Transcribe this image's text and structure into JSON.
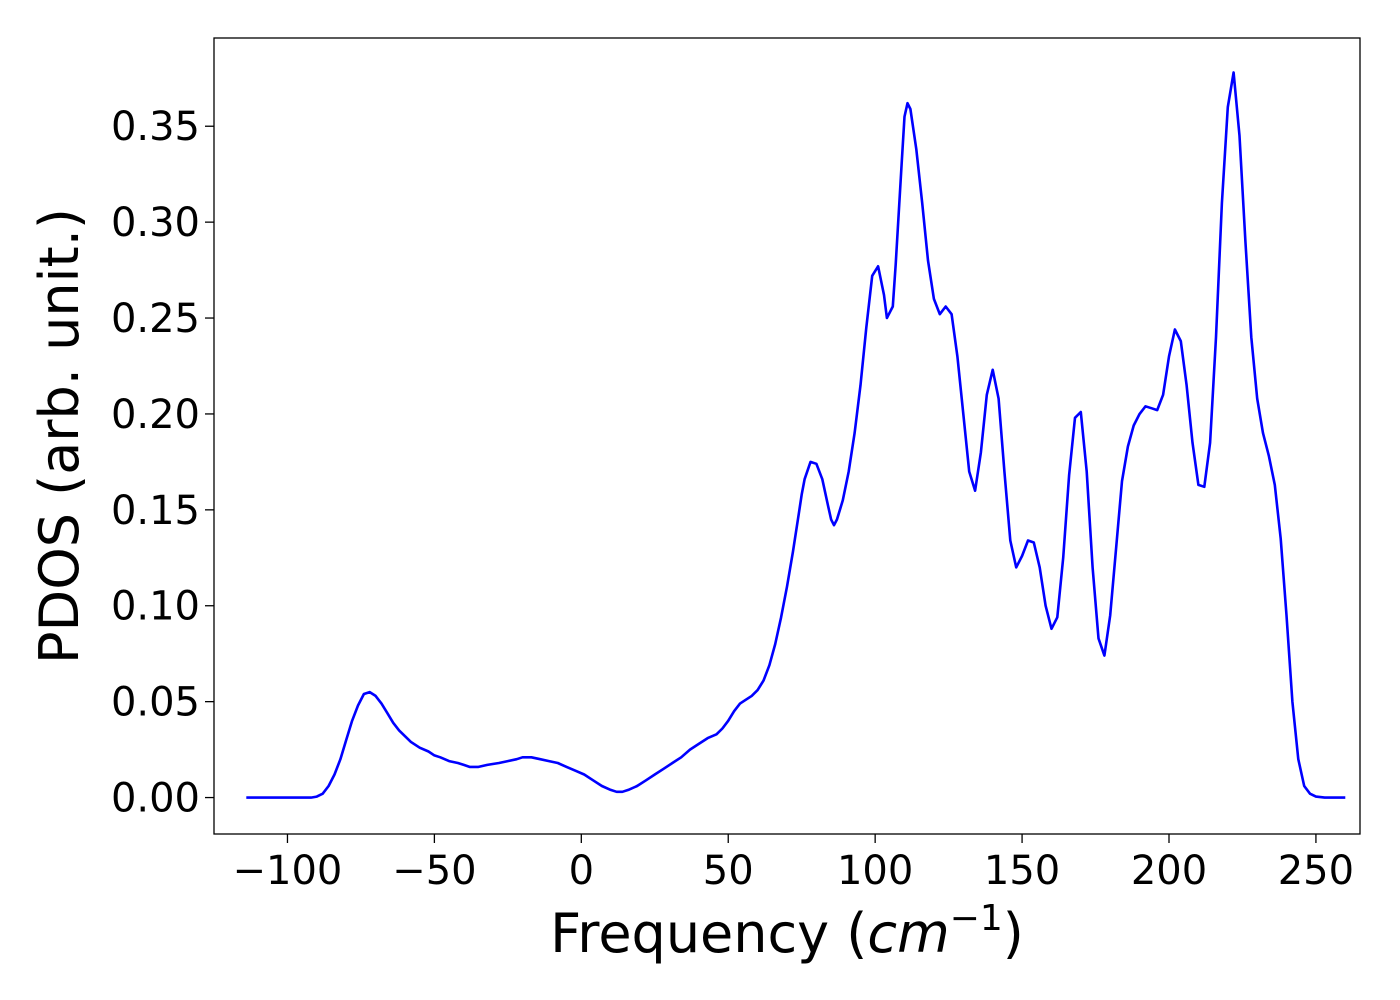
{
  "chart_data": {
    "type": "line",
    "title": "",
    "xlabel": "Frequency (",
    "xlabel_math": "cm",
    "xlabel_exponent": "−1",
    "xlabel_suffix": ")",
    "ylabel": "PDOS (arb. unit.)",
    "xlim": [
      -125,
      265
    ],
    "ylim": [
      -0.019,
      0.396
    ],
    "grid": false,
    "legend": "none",
    "line_color": "#0000ff",
    "x_ticks": [
      {
        "value": -100,
        "label": "−100"
      },
      {
        "value": -50,
        "label": "−50"
      },
      {
        "value": 0,
        "label": "0"
      },
      {
        "value": 50,
        "label": "50"
      },
      {
        "value": 100,
        "label": "100"
      },
      {
        "value": 150,
        "label": "150"
      },
      {
        "value": 200,
        "label": "200"
      },
      {
        "value": 250,
        "label": "250"
      }
    ],
    "y_ticks": [
      {
        "value": 0.0,
        "label": "0.00"
      },
      {
        "value": 0.05,
        "label": "0.05"
      },
      {
        "value": 0.1,
        "label": "0.10"
      },
      {
        "value": 0.15,
        "label": "0.15"
      },
      {
        "value": 0.2,
        "label": "0.20"
      },
      {
        "value": 0.25,
        "label": "0.25"
      },
      {
        "value": 0.3,
        "label": "0.30"
      },
      {
        "value": 0.35,
        "label": "0.35"
      }
    ],
    "series": [
      {
        "color": "#0000ff",
        "points": [
          [
            -114,
            0.0
          ],
          [
            -100,
            0.0
          ],
          [
            -92,
            0.0
          ],
          [
            -90,
            0.0005
          ],
          [
            -88,
            0.002
          ],
          [
            -86,
            0.006
          ],
          [
            -84,
            0.012
          ],
          [
            -82,
            0.02
          ],
          [
            -80,
            0.03
          ],
          [
            -78,
            0.04
          ],
          [
            -76,
            0.048
          ],
          [
            -74,
            0.054
          ],
          [
            -72,
            0.055
          ],
          [
            -70,
            0.053
          ],
          [
            -68,
            0.049
          ],
          [
            -66,
            0.044
          ],
          [
            -64,
            0.039
          ],
          [
            -62,
            0.035
          ],
          [
            -60,
            0.032
          ],
          [
            -58,
            0.029
          ],
          [
            -55,
            0.026
          ],
          [
            -52,
            0.024
          ],
          [
            -50,
            0.022
          ],
          [
            -48,
            0.021
          ],
          [
            -45,
            0.019
          ],
          [
            -42,
            0.018
          ],
          [
            -40,
            0.017
          ],
          [
            -38,
            0.016
          ],
          [
            -35,
            0.016
          ],
          [
            -32,
            0.017
          ],
          [
            -28,
            0.018
          ],
          [
            -25,
            0.019
          ],
          [
            -22,
            0.02
          ],
          [
            -20,
            0.021
          ],
          [
            -17,
            0.021
          ],
          [
            -14,
            0.02
          ],
          [
            -11,
            0.019
          ],
          [
            -8,
            0.018
          ],
          [
            -5,
            0.016
          ],
          [
            -2,
            0.014
          ],
          [
            1,
            0.012
          ],
          [
            4,
            0.009
          ],
          [
            7,
            0.006
          ],
          [
            10,
            0.004
          ],
          [
            12,
            0.003
          ],
          [
            14,
            0.003
          ],
          [
            16,
            0.004
          ],
          [
            19,
            0.006
          ],
          [
            22,
            0.009
          ],
          [
            25,
            0.012
          ],
          [
            28,
            0.015
          ],
          [
            31,
            0.018
          ],
          [
            34,
            0.021
          ],
          [
            37,
            0.025
          ],
          [
            40,
            0.028
          ],
          [
            43,
            0.031
          ],
          [
            46,
            0.033
          ],
          [
            48,
            0.036
          ],
          [
            50,
            0.04
          ],
          [
            52,
            0.045
          ],
          [
            54,
            0.049
          ],
          [
            56,
            0.051
          ],
          [
            58,
            0.053
          ],
          [
            60,
            0.056
          ],
          [
            62,
            0.061
          ],
          [
            64,
            0.069
          ],
          [
            66,
            0.08
          ],
          [
            68,
            0.094
          ],
          [
            70,
            0.11
          ],
          [
            72,
            0.128
          ],
          [
            74,
            0.148
          ],
          [
            75,
            0.158
          ],
          [
            76,
            0.166
          ],
          [
            78,
            0.175
          ],
          [
            80,
            0.174
          ],
          [
            82,
            0.166
          ],
          [
            84,
            0.152
          ],
          [
            85,
            0.145
          ],
          [
            86,
            0.142
          ],
          [
            87,
            0.145
          ],
          [
            89,
            0.155
          ],
          [
            91,
            0.17
          ],
          [
            93,
            0.19
          ],
          [
            95,
            0.215
          ],
          [
            97,
            0.245
          ],
          [
            99,
            0.272
          ],
          [
            101,
            0.277
          ],
          [
            103,
            0.262
          ],
          [
            104,
            0.25
          ],
          [
            106,
            0.256
          ],
          [
            107,
            0.278
          ],
          [
            109,
            0.33
          ],
          [
            110,
            0.355
          ],
          [
            111,
            0.362
          ],
          [
            112,
            0.359
          ],
          [
            114,
            0.338
          ],
          [
            116,
            0.31
          ],
          [
            118,
            0.28
          ],
          [
            120,
            0.26
          ],
          [
            122,
            0.252
          ],
          [
            124,
            0.256
          ],
          [
            126,
            0.252
          ],
          [
            128,
            0.23
          ],
          [
            130,
            0.2
          ],
          [
            132,
            0.17
          ],
          [
            134,
            0.16
          ],
          [
            136,
            0.18
          ],
          [
            138,
            0.21
          ],
          [
            140,
            0.223
          ],
          [
            142,
            0.208
          ],
          [
            144,
            0.17
          ],
          [
            146,
            0.134
          ],
          [
            148,
            0.12
          ],
          [
            150,
            0.126
          ],
          [
            152,
            0.134
          ],
          [
            154,
            0.133
          ],
          [
            156,
            0.12
          ],
          [
            158,
            0.1
          ],
          [
            160,
            0.088
          ],
          [
            162,
            0.094
          ],
          [
            164,
            0.125
          ],
          [
            166,
            0.168
          ],
          [
            168,
            0.198
          ],
          [
            170,
            0.201
          ],
          [
            172,
            0.17
          ],
          [
            174,
            0.12
          ],
          [
            176,
            0.083
          ],
          [
            178,
            0.074
          ],
          [
            180,
            0.095
          ],
          [
            182,
            0.13
          ],
          [
            184,
            0.165
          ],
          [
            186,
            0.183
          ],
          [
            188,
            0.194
          ],
          [
            190,
            0.2
          ],
          [
            192,
            0.204
          ],
          [
            194,
            0.203
          ],
          [
            196,
            0.202
          ],
          [
            198,
            0.21
          ],
          [
            200,
            0.23
          ],
          [
            202,
            0.244
          ],
          [
            204,
            0.238
          ],
          [
            206,
            0.215
          ],
          [
            208,
            0.185
          ],
          [
            210,
            0.163
          ],
          [
            212,
            0.162
          ],
          [
            214,
            0.185
          ],
          [
            216,
            0.24
          ],
          [
            218,
            0.31
          ],
          [
            220,
            0.36
          ],
          [
            222,
            0.378
          ],
          [
            224,
            0.345
          ],
          [
            226,
            0.29
          ],
          [
            228,
            0.24
          ],
          [
            230,
            0.208
          ],
          [
            232,
            0.19
          ],
          [
            234,
            0.178
          ],
          [
            236,
            0.163
          ],
          [
            238,
            0.135
          ],
          [
            240,
            0.095
          ],
          [
            242,
            0.05
          ],
          [
            244,
            0.02
          ],
          [
            246,
            0.006
          ],
          [
            248,
            0.002
          ],
          [
            250,
            0.0005
          ],
          [
            253,
            0.0
          ],
          [
            260,
            0.0
          ]
        ]
      }
    ]
  }
}
